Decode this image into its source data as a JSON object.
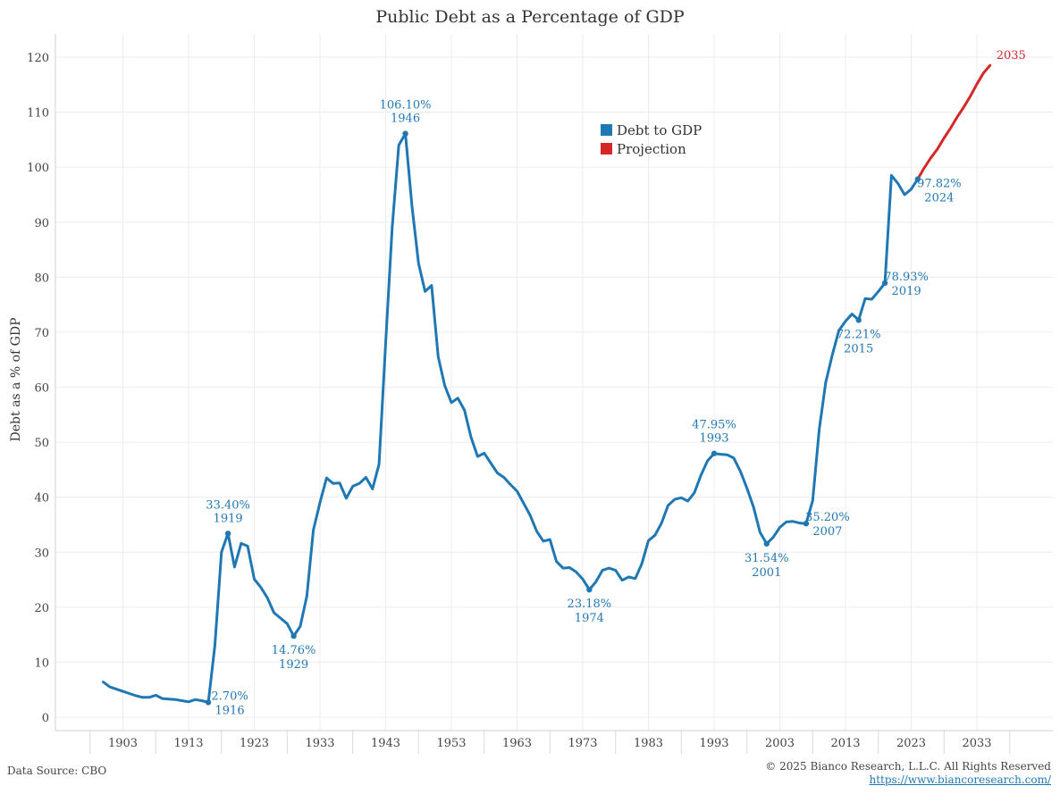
{
  "chart_data": {
    "type": "line",
    "title": "Public Debt as a Percentage of GDP",
    "ylabel": "Debt as a % of GDP",
    "xlabel": "",
    "xlim": [
      1892,
      2039
    ],
    "ylim": [
      0,
      120
    ],
    "x_ticks": [
      1903,
      1913,
      1923,
      1933,
      1943,
      1953,
      1963,
      1973,
      1983,
      1993,
      2003,
      2013,
      2023,
      2033
    ],
    "y_ticks": [
      0,
      10,
      20,
      30,
      40,
      50,
      60,
      70,
      80,
      90,
      100,
      110,
      120
    ],
    "legend": {
      "position": "top-center",
      "items": [
        {
          "label": "Debt to GDP",
          "color": "#1f77b4"
        },
        {
          "label": "Projection",
          "color": "#d62728"
        }
      ]
    },
    "series": [
      {
        "name": "Debt to GDP",
        "color": "#1f77b4",
        "x": [
          1900,
          1901,
          1902,
          1903,
          1904,
          1905,
          1906,
          1907,
          1908,
          1909,
          1910,
          1911,
          1912,
          1913,
          1914,
          1915,
          1916,
          1917,
          1918,
          1919,
          1920,
          1921,
          1922,
          1923,
          1924,
          1925,
          1926,
          1927,
          1928,
          1929,
          1930,
          1931,
          1932,
          1933,
          1934,
          1935,
          1936,
          1937,
          1938,
          1939,
          1940,
          1941,
          1942,
          1943,
          1944,
          1945,
          1946,
          1947,
          1948,
          1949,
          1950,
          1951,
          1952,
          1953,
          1954,
          1955,
          1956,
          1957,
          1958,
          1959,
          1960,
          1961,
          1962,
          1963,
          1964,
          1965,
          1966,
          1967,
          1968,
          1969,
          1970,
          1971,
          1972,
          1973,
          1974,
          1975,
          1976,
          1977,
          1978,
          1979,
          1980,
          1981,
          1982,
          1983,
          1984,
          1985,
          1986,
          1987,
          1988,
          1989,
          1990,
          1991,
          1992,
          1993,
          1994,
          1995,
          1996,
          1997,
          1998,
          1999,
          2000,
          2001,
          2002,
          2003,
          2004,
          2005,
          2006,
          2007,
          2008,
          2009,
          2010,
          2011,
          2012,
          2013,
          2014,
          2015,
          2016,
          2017,
          2018,
          2019,
          2020,
          2021,
          2022,
          2023,
          2024
        ],
        "values": [
          6.4,
          5.5,
          5.1,
          4.7,
          4.3,
          3.9,
          3.6,
          3.6,
          4.0,
          3.4,
          3.3,
          3.2,
          3.0,
          2.8,
          3.2,
          3.0,
          2.7,
          13.0,
          30.0,
          33.4,
          27.3,
          31.6,
          31.1,
          25.1,
          23.6,
          21.7,
          19.0,
          18.0,
          17.0,
          14.76,
          16.5,
          22.0,
          34.0,
          39.0,
          43.5,
          42.5,
          42.6,
          39.8,
          42.0,
          42.5,
          43.6,
          41.5,
          46.0,
          68.0,
          89.0,
          104.0,
          106.1,
          93.0,
          82.5,
          77.4,
          78.5,
          65.5,
          60.3,
          57.2,
          58.0,
          55.8,
          50.9,
          47.4,
          48.0,
          46.2,
          44.4,
          43.6,
          42.3,
          41.1,
          38.9,
          36.7,
          33.8,
          32.0,
          32.3,
          28.3,
          27.1,
          27.2,
          26.4,
          25.1,
          23.18,
          24.6,
          26.7,
          27.1,
          26.7,
          24.9,
          25.5,
          25.2,
          27.9,
          32.1,
          33.1,
          35.3,
          38.5,
          39.6,
          39.9,
          39.3,
          40.8,
          44.0,
          46.6,
          47.95,
          47.8,
          47.7,
          47.1,
          44.7,
          41.6,
          38.2,
          33.6,
          31.54,
          32.7,
          34.5,
          35.5,
          35.6,
          35.3,
          35.2,
          39.4,
          52.3,
          60.9,
          65.9,
          70.3,
          72.0,
          73.3,
          72.21,
          76.1,
          76.0,
          77.4,
          78.93,
          98.5,
          97.0,
          95.0,
          96.0,
          97.82
        ]
      },
      {
        "name": "Projection",
        "color": "#d62728",
        "x": [
          2024,
          2025,
          2026,
          2027,
          2028,
          2029,
          2030,
          2031,
          2032,
          2033,
          2034,
          2035
        ],
        "values": [
          97.82,
          99.9,
          101.7,
          103.3,
          105.3,
          107.1,
          109.1,
          110.9,
          112.9,
          115.1,
          117.1,
          118.5
        ]
      }
    ],
    "annotations": [
      {
        "x": 1916,
        "y": 2.7,
        "value": "2.70%",
        "year": "1916",
        "pos": "right"
      },
      {
        "x": 1919,
        "y": 33.4,
        "value": "33.40%",
        "year": "1919",
        "pos": "above"
      },
      {
        "x": 1929,
        "y": 14.76,
        "value": "14.76%",
        "year": "1929",
        "pos": "below"
      },
      {
        "x": 1946,
        "y": 106.1,
        "value": "106.10%",
        "year": "1946",
        "pos": "above"
      },
      {
        "x": 1974,
        "y": 23.18,
        "value": "23.18%",
        "year": "1974",
        "pos": "below"
      },
      {
        "x": 1993,
        "y": 47.95,
        "value": "47.95%",
        "year": "1993",
        "pos": "above"
      },
      {
        "x": 2001,
        "y": 31.54,
        "value": "31.54%",
        "year": "2001",
        "pos": "below"
      },
      {
        "x": 2007,
        "y": 35.2,
        "value": "35.20%",
        "year": "2007",
        "pos": "right"
      },
      {
        "x": 2015,
        "y": 72.21,
        "value": "72.21%",
        "year": "2015",
        "pos": "below"
      },
      {
        "x": 2019,
        "y": 78.93,
        "value": "78.93%",
        "year": "2019",
        "pos": "right"
      },
      {
        "x": 2024,
        "y": 97.82,
        "value": "97.82%",
        "year": "2024",
        "pos": "below-right"
      }
    ],
    "end_label": {
      "x": 2035,
      "y": 118.5,
      "text": "2035",
      "color": "#d62728"
    }
  },
  "footer": {
    "source": "Data Source: CBO",
    "copyright": "© 2025 Bianco Research, L.L.C. All Rights Reserved",
    "url": "https://www.biancoresearch.com/"
  }
}
